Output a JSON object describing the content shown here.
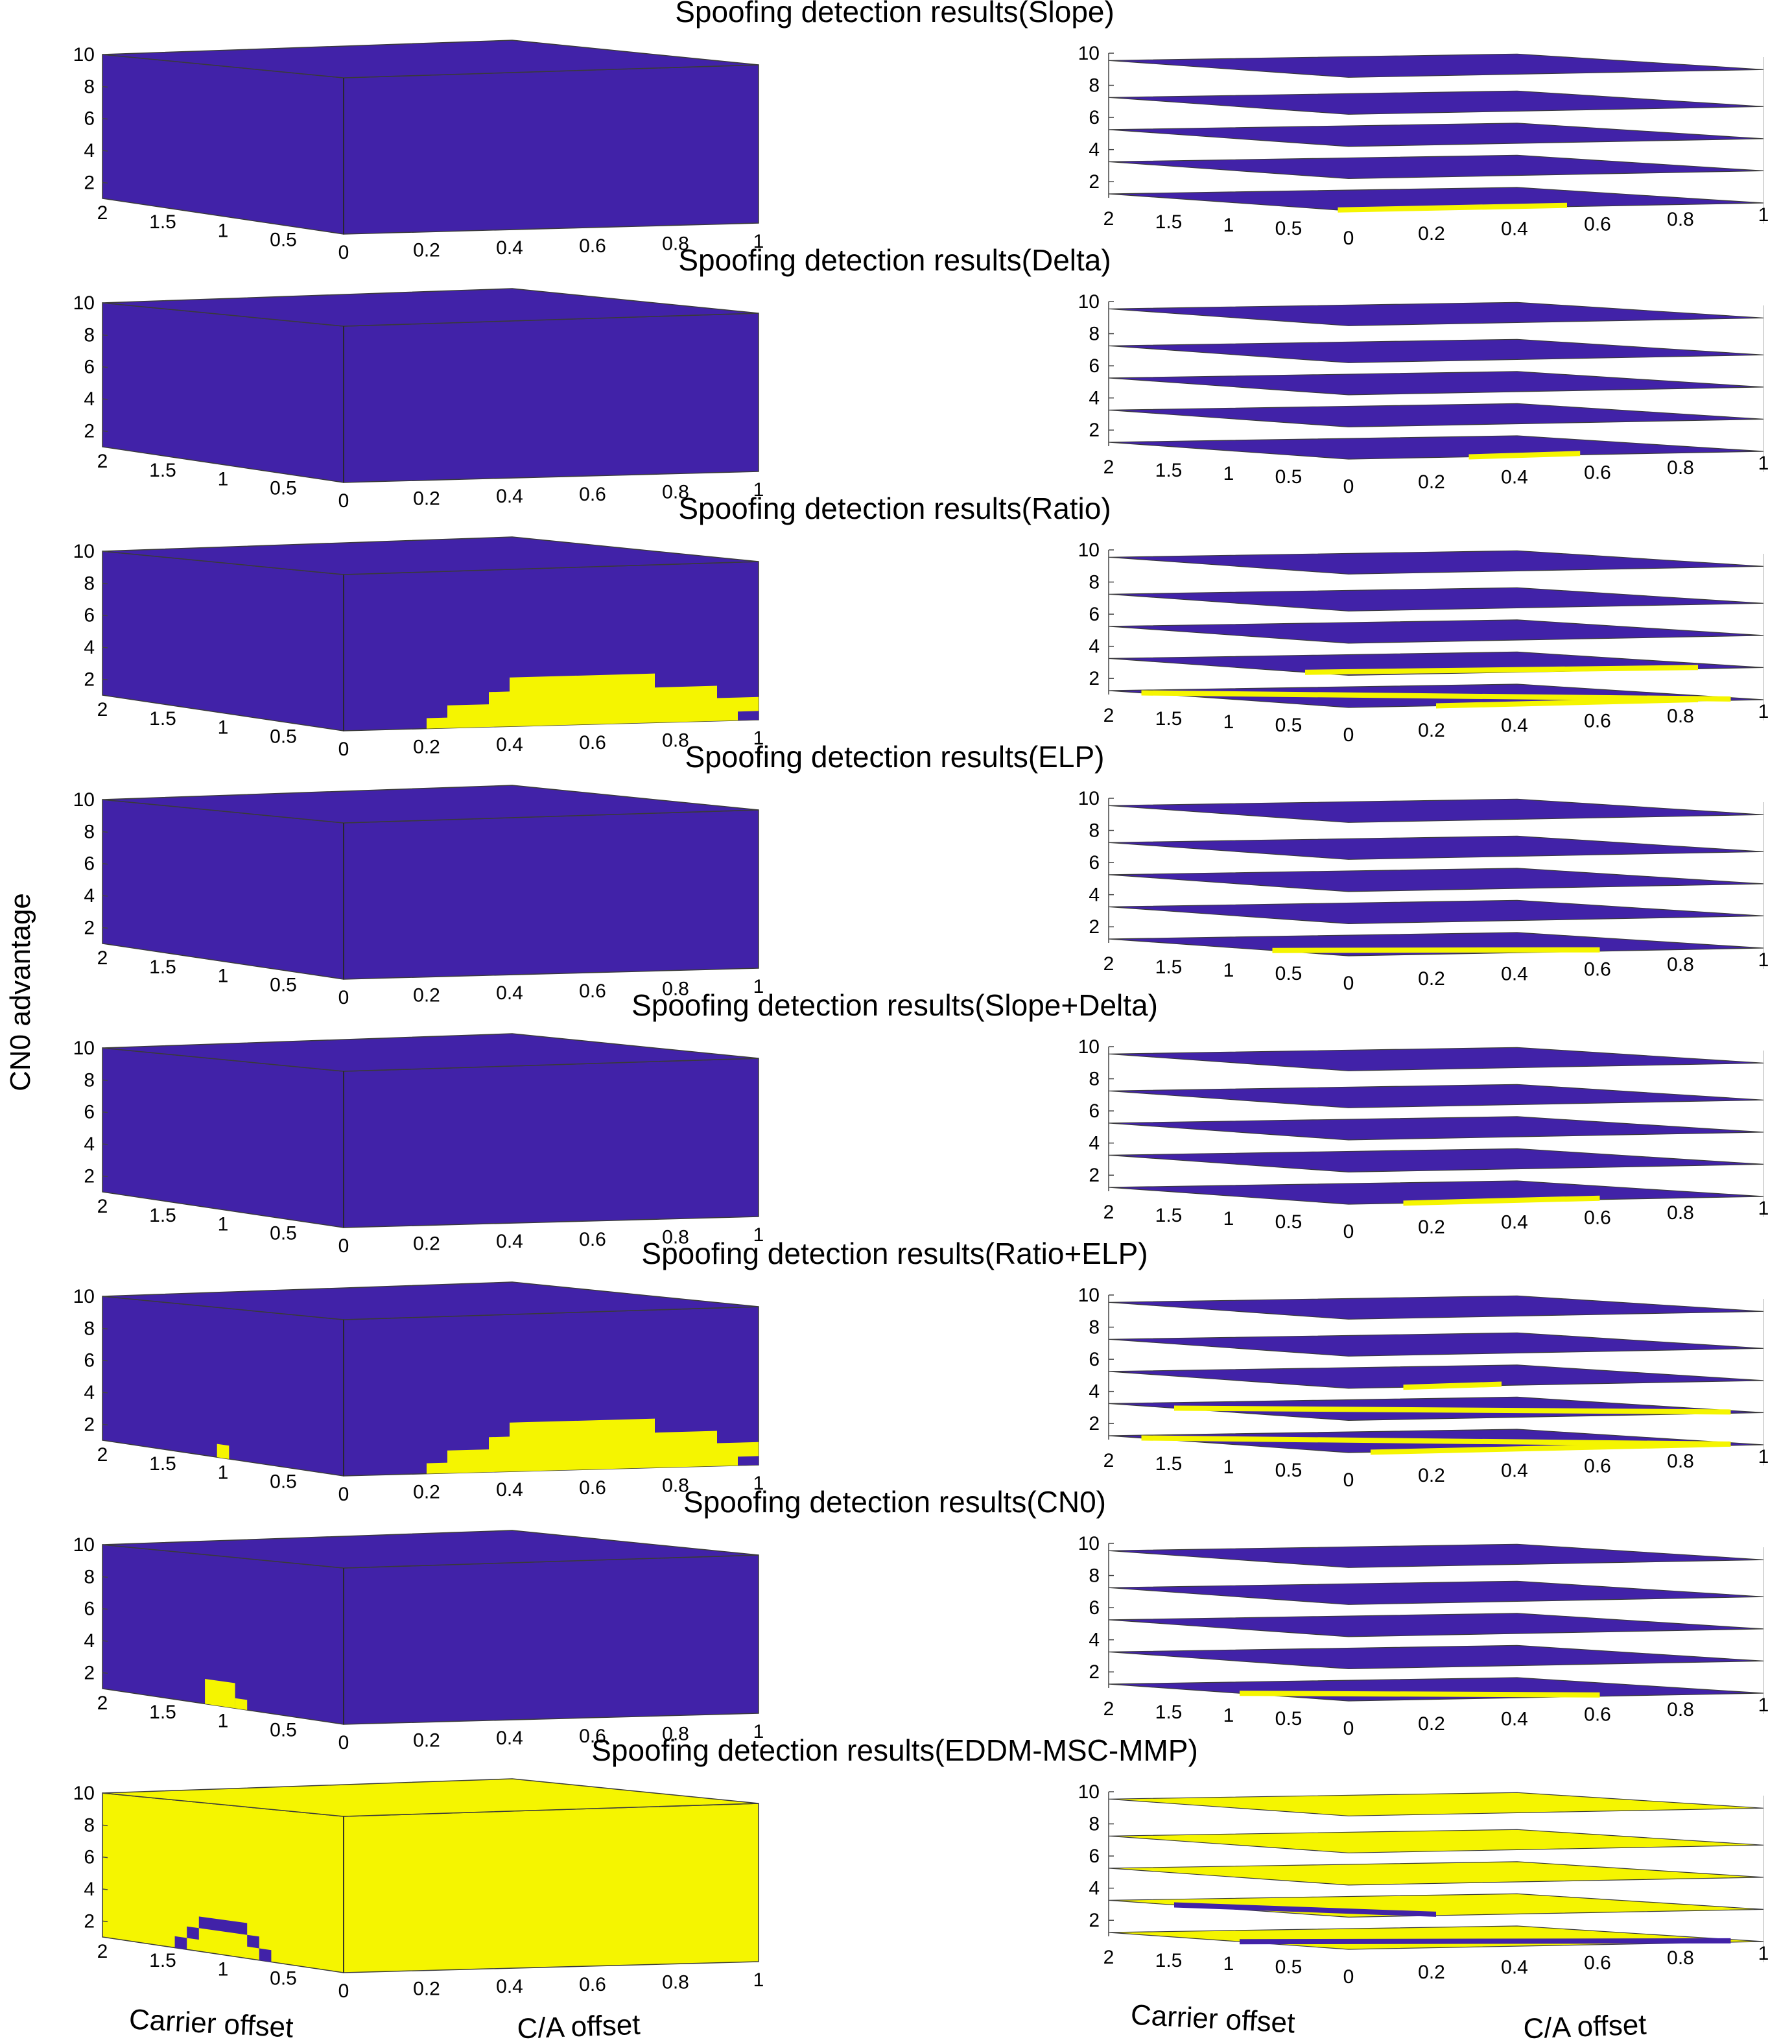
{
  "figure": {
    "ylabel": "CN0 advantage",
    "xlabel_carrier": "Carrier offset",
    "xlabel_ca": "C/A offset"
  },
  "colors": {
    "detected": "#f5f500",
    "not_detected": "#4122a8",
    "edge": "#3a3a3a"
  },
  "chart_data": [
    {
      "type": "heatmap",
      "title": "Spoofing detection results(Slope)",
      "yticks": [
        "2",
        "4",
        "6",
        "8",
        "10"
      ],
      "carrier_ticks": [
        "2",
        "1.5",
        "1",
        "0.5"
      ],
      "ca_ticks": [
        "0",
        "0.2",
        "0.4",
        "0.6",
        "0.8",
        "1"
      ],
      "zlim": [
        1,
        10
      ],
      "carrier_range": [
        2,
        0
      ],
      "ca_range": [
        0,
        1
      ],
      "front_regions": [],
      "side_regions": [],
      "base_fill": "not_detected",
      "layer_patches": [
        {
          "layer": 0,
          "from": 0.35,
          "to": 0.7
        }
      ]
    },
    {
      "type": "heatmap",
      "title": "Spoofing detection results(Delta)",
      "yticks": [
        "2",
        "4",
        "6",
        "8",
        "10"
      ],
      "carrier_ticks": [
        "2",
        "1.5",
        "1",
        "0.5"
      ],
      "ca_ticks": [
        "0",
        "0.2",
        "0.4",
        "0.6",
        "0.8",
        "1"
      ],
      "zlim": [
        1,
        10
      ],
      "carrier_range": [
        2,
        0
      ],
      "ca_range": [
        0,
        1
      ],
      "front_regions": [],
      "side_regions": [],
      "base_fill": "not_detected",
      "layer_patches": [
        {
          "layer": 0,
          "from": 0.55,
          "to": 0.72
        }
      ]
    },
    {
      "type": "heatmap",
      "title": "Spoofing detection results(Ratio)",
      "yticks": [
        "2",
        "4",
        "6",
        "8",
        "10"
      ],
      "carrier_ticks": [
        "2",
        "1.5",
        "1",
        "0.5"
      ],
      "ca_ticks": [
        "0",
        "0.2",
        "0.4",
        "0.6",
        "0.8",
        "1"
      ],
      "zlim": [
        1,
        10
      ],
      "carrier_range": [
        2,
        0
      ],
      "ca_range": [
        0,
        1
      ],
      "front_regions": [
        {
          "x0": 0.2,
          "x1": 0.25,
          "top": 1.6
        },
        {
          "x0": 0.25,
          "x1": 0.35,
          "top": 2.3
        },
        {
          "x0": 0.35,
          "x1": 0.4,
          "top": 3.0
        },
        {
          "x0": 0.4,
          "x1": 0.75,
          "top": 3.8
        },
        {
          "x0": 0.75,
          "x1": 0.9,
          "top": 3.0
        },
        {
          "x0": 0.9,
          "x1": 1.0,
          "top": 2.3,
          "hole_below": 1.5
        }
      ],
      "side_regions": [],
      "base_fill": "not_detected",
      "layer_patches": [
        {
          "layer": 0,
          "from": 0.05,
          "to": 0.95
        },
        {
          "layer": 1,
          "from": 0.3,
          "to": 0.9
        },
        {
          "layer": 0,
          "from": 0.5,
          "to": 0.9
        }
      ]
    },
    {
      "type": "heatmap",
      "title": "Spoofing detection results(ELP)",
      "yticks": [
        "2",
        "4",
        "6",
        "8",
        "10"
      ],
      "carrier_ticks": [
        "2",
        "1.5",
        "1",
        "0.5"
      ],
      "ca_ticks": [
        "0",
        "0.2",
        "0.4",
        "0.6",
        "0.8",
        "1"
      ],
      "zlim": [
        1,
        10
      ],
      "carrier_range": [
        2,
        0
      ],
      "ca_range": [
        0,
        1
      ],
      "front_regions": [],
      "side_regions": [],
      "base_fill": "not_detected",
      "layer_patches": [
        {
          "layer": 0,
          "from": 0.25,
          "to": 0.75
        }
      ]
    },
    {
      "type": "heatmap",
      "title": "Spoofing detection results(Slope+Delta)",
      "yticks": [
        "2",
        "4",
        "6",
        "8",
        "10"
      ],
      "carrier_ticks": [
        "2",
        "1.5",
        "1",
        "0.5"
      ],
      "ca_ticks": [
        "0",
        "0.2",
        "0.4",
        "0.6",
        "0.8",
        "1"
      ],
      "zlim": [
        1,
        10
      ],
      "carrier_range": [
        2,
        0
      ],
      "ca_range": [
        0,
        1
      ],
      "front_regions": [],
      "side_regions": [],
      "base_fill": "not_detected",
      "layer_patches": [
        {
          "layer": 0,
          "from": 0.45,
          "to": 0.75
        }
      ]
    },
    {
      "type": "heatmap",
      "title": "Spoofing detection results(Ratio+ELP)",
      "yticks": [
        "2",
        "4",
        "6",
        "8",
        "10"
      ],
      "carrier_ticks": [
        "2",
        "1.5",
        "1",
        "0.5"
      ],
      "ca_ticks": [
        "0",
        "0.2",
        "0.4",
        "0.6",
        "0.8",
        "1"
      ],
      "zlim": [
        1,
        10
      ],
      "carrier_range": [
        2,
        0
      ],
      "ca_range": [
        0,
        1
      ],
      "front_regions": [
        {
          "x0": 0.2,
          "x1": 0.25,
          "top": 1.6
        },
        {
          "x0": 0.25,
          "x1": 0.35,
          "top": 2.3
        },
        {
          "x0": 0.35,
          "x1": 0.4,
          "top": 3.0
        },
        {
          "x0": 0.4,
          "x1": 0.75,
          "top": 3.8
        },
        {
          "x0": 0.75,
          "x1": 0.9,
          "top": 3.0
        },
        {
          "x0": 0.9,
          "x1": 1.0,
          "top": 2.3,
          "hole_below": 1.5
        }
      ],
      "side_regions": [
        {
          "c0": 1.05,
          "c1": 0.95,
          "bottom": 1.0,
          "top": 1.8
        }
      ],
      "base_fill": "not_detected",
      "layer_patches": [
        {
          "layer": 0,
          "from": 0.05,
          "to": 0.95
        },
        {
          "layer": 1,
          "from": 0.1,
          "to": 0.95
        },
        {
          "layer": 2,
          "from": 0.45,
          "to": 0.6
        },
        {
          "layer": 0,
          "from": 0.4,
          "to": 0.95
        }
      ]
    },
    {
      "type": "heatmap",
      "title": "Spoofing detection results(CN0)",
      "yticks": [
        "2",
        "4",
        "6",
        "8",
        "10"
      ],
      "carrier_ticks": [
        "2",
        "1.5",
        "1",
        "0.5"
      ],
      "ca_ticks": [
        "0",
        "0.2",
        "0.4",
        "0.6",
        "0.8",
        "1"
      ],
      "zlim": [
        1,
        10
      ],
      "carrier_range": [
        2,
        0
      ],
      "ca_range": [
        0,
        1
      ],
      "front_regions": [],
      "side_regions": [
        {
          "c0": 1.15,
          "c1": 0.9,
          "bottom": 1.0,
          "top": 2.5
        },
        {
          "c0": 0.9,
          "c1": 0.8,
          "bottom": 1.0,
          "top": 1.6
        }
      ],
      "base_fill": "not_detected",
      "layer_patches": [
        {
          "layer": 0,
          "from": 0.2,
          "to": 0.75
        }
      ]
    },
    {
      "type": "heatmap",
      "title": "Spoofing detection results(EDDM-MSC-MMP)",
      "yticks": [
        "2",
        "4",
        "6",
        "8",
        "10"
      ],
      "carrier_ticks": [
        "2",
        "1.5",
        "1",
        "0.5"
      ],
      "ca_ticks": [
        "0",
        "0.2",
        "0.4",
        "0.6",
        "0.8",
        "1"
      ],
      "zlim": [
        1,
        10
      ],
      "carrier_range": [
        2,
        0
      ],
      "ca_range": [
        0,
        1
      ],
      "front_regions": [],
      "side_regions": [
        {
          "c0": 1.4,
          "c1": 1.3,
          "bottom": 1.0,
          "top": 1.7,
          "fill": "not_detected"
        },
        {
          "c0": 1.3,
          "c1": 1.2,
          "bottom": 1.7,
          "top": 2.4,
          "fill": "not_detected"
        },
        {
          "c0": 1.2,
          "c1": 0.8,
          "bottom": 2.4,
          "top": 3.1,
          "fill": "not_detected"
        },
        {
          "c0": 0.8,
          "c1": 0.7,
          "bottom": 1.7,
          "top": 2.4,
          "fill": "not_detected"
        },
        {
          "c0": 0.7,
          "c1": 0.6,
          "bottom": 1.0,
          "top": 1.7,
          "fill": "not_detected"
        }
      ],
      "base_fill": "detected",
      "layer_patches": [
        {
          "layer": 1,
          "from": 0.1,
          "to": 0.5,
          "fill": "not_detected"
        },
        {
          "layer": 0,
          "from": 0.2,
          "to": 0.95,
          "fill": "not_detected"
        }
      ]
    }
  ]
}
